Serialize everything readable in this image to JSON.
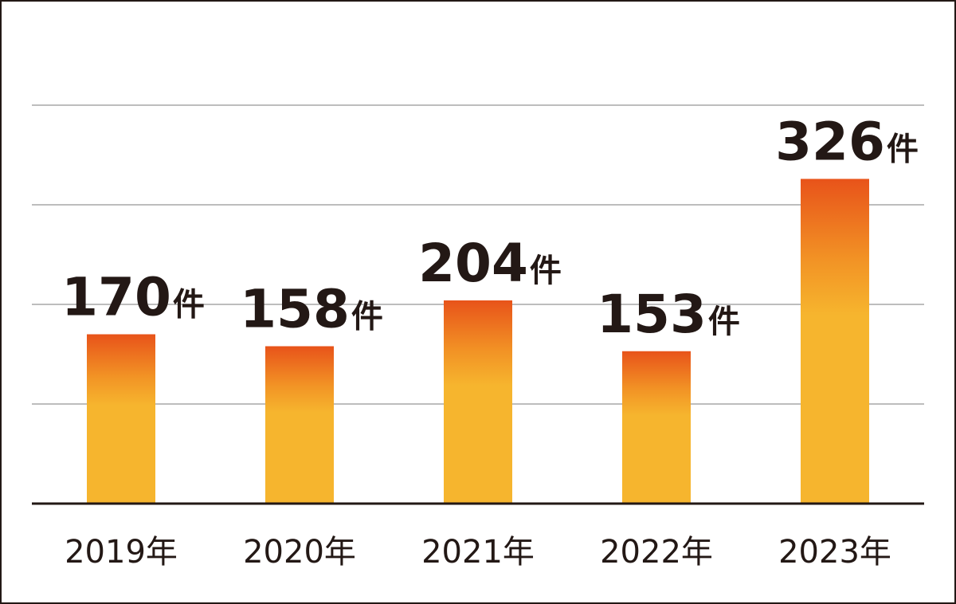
{
  "chart_data": {
    "type": "bar",
    "categories": [
      "2019年",
      "2020年",
      "2021年",
      "2022年",
      "2023年"
    ],
    "values": [
      170,
      158,
      204,
      153,
      326
    ],
    "unit": "件",
    "ylim": [
      0,
      400
    ],
    "grid": true,
    "gridlines": [
      100,
      200,
      300,
      400
    ],
    "colors": {
      "bar_top": "#E8531A",
      "bar_bottom": "#F6B52E",
      "grid": "#BDBDBD",
      "axis": "#231815",
      "text": "#231815"
    }
  }
}
